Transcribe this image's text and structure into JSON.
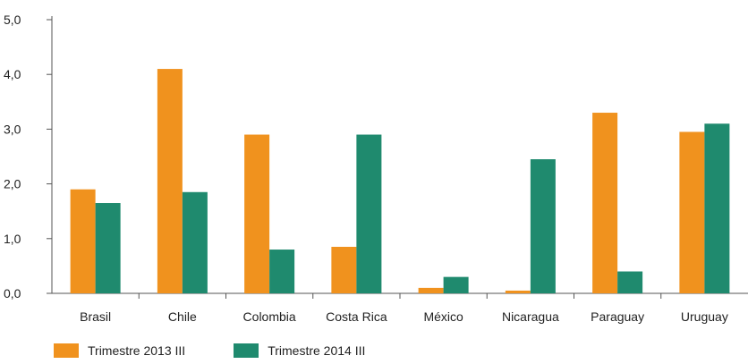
{
  "chart_data": {
    "type": "bar",
    "categories": [
      "Brasil",
      "Chile",
      "Colombia",
      "Costa Rica",
      "México",
      "Nicaragua",
      "Paraguay",
      "Uruguay"
    ],
    "series": [
      {
        "name": "Trimestre 2013 III",
        "color": "#f0921e",
        "values": [
          1.9,
          4.1,
          2.9,
          0.85,
          0.1,
          0.05,
          3.3,
          2.95
        ]
      },
      {
        "name": "Trimestre 2014 III",
        "color": "#1f8a6e",
        "values": [
          1.65,
          1.85,
          0.8,
          2.9,
          0.3,
          2.45,
          0.4,
          3.1
        ]
      }
    ],
    "y_ticks": [
      "0,0",
      "1,0",
      "2,0",
      "3,0",
      "4,0",
      "5,0"
    ],
    "ylim": [
      0,
      5
    ],
    "grid": false,
    "legend_position": "bottom-left"
  }
}
